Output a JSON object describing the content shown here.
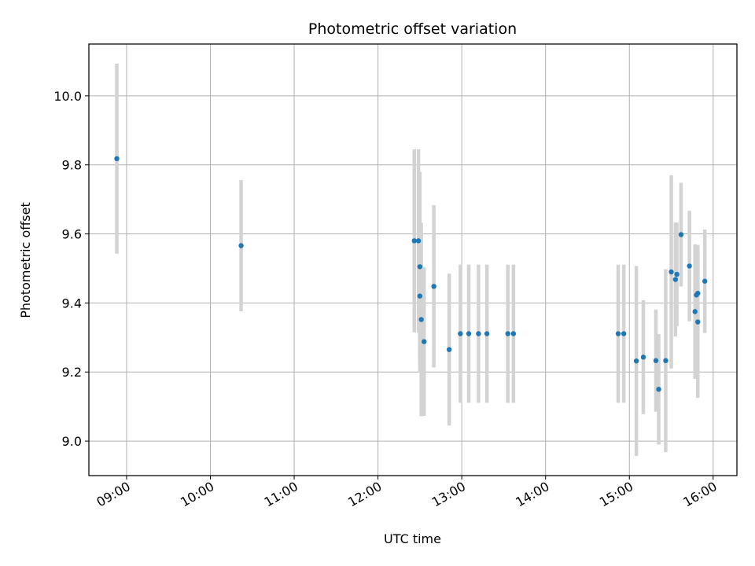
{
  "chart_data": {
    "type": "scatter",
    "title": "Photometric offset variation",
    "xlabel": "UTC time",
    "ylabel": "Photometric offset",
    "x_axis_type": "time",
    "xlim": [
      "08:33",
      "16:17"
    ],
    "ylim": [
      8.9,
      10.15
    ],
    "x_ticks": [
      "09:00",
      "10:00",
      "11:00",
      "12:00",
      "13:00",
      "14:00",
      "15:00",
      "16:00"
    ],
    "y_ticks": [
      9.0,
      9.2,
      9.4,
      9.6,
      9.8,
      10.0
    ],
    "grid": true,
    "point_color": "#1f77b4",
    "errorbar_color": "#d3d3d3",
    "series": [
      {
        "points": [
          {
            "x": "08:53",
            "y": 9.818,
            "err": 0.275
          },
          {
            "x": "10:22",
            "y": 9.566,
            "err": 0.19
          },
          {
            "x": "12:26",
            "y": 9.58,
            "err": 0.265
          },
          {
            "x": "12:29",
            "y": 9.58,
            "err": 0.265
          },
          {
            "x": "12:30",
            "y": 9.505,
            "err": 0.275
          },
          {
            "x": "12:30",
            "y": 9.42,
            "err": 0.22
          },
          {
            "x": "12:31",
            "y": 9.352,
            "err": 0.28
          },
          {
            "x": "12:33",
            "y": 9.288,
            "err": 0.215
          },
          {
            "x": "12:40",
            "y": 9.448,
            "err": 0.235
          },
          {
            "x": "12:51",
            "y": 9.265,
            "err": 0.22
          },
          {
            "x": "12:59",
            "y": 9.311,
            "err": 0.2
          },
          {
            "x": "13:05",
            "y": 9.311,
            "err": 0.2
          },
          {
            "x": "13:12",
            "y": 9.311,
            "err": 0.2
          },
          {
            "x": "13:18",
            "y": 9.311,
            "err": 0.2
          },
          {
            "x": "13:33",
            "y": 9.311,
            "err": 0.2
          },
          {
            "x": "13:37",
            "y": 9.311,
            "err": 0.2
          },
          {
            "x": "14:52",
            "y": 9.311,
            "err": 0.2
          },
          {
            "x": "14:56",
            "y": 9.311,
            "err": 0.2
          },
          {
            "x": "15:05",
            "y": 9.232,
            "err": 0.275
          },
          {
            "x": "15:10",
            "y": 9.243,
            "err": 0.165
          },
          {
            "x": "15:19",
            "y": 9.233,
            "err": 0.148
          },
          {
            "x": "15:21",
            "y": 9.15,
            "err": 0.16
          },
          {
            "x": "15:26",
            "y": 9.233,
            "err": 0.265
          },
          {
            "x": "15:30",
            "y": 9.49,
            "err": 0.28
          },
          {
            "x": "15:33",
            "y": 9.468,
            "err": 0.165
          },
          {
            "x": "15:34",
            "y": 9.483,
            "err": 0.15
          },
          {
            "x": "15:37",
            "y": 9.598,
            "err": 0.15
          },
          {
            "x": "15:43",
            "y": 9.507,
            "err": 0.16
          },
          {
            "x": "15:47",
            "y": 9.375,
            "err": 0.195
          },
          {
            "x": "15:48",
            "y": 9.423,
            "err": 0.145
          },
          {
            "x": "15:49",
            "y": 9.345,
            "err": 0.22
          },
          {
            "x": "15:49",
            "y": 9.428,
            "err": 0.14
          },
          {
            "x": "15:54",
            "y": 9.463,
            "err": 0.15
          }
        ]
      }
    ]
  }
}
